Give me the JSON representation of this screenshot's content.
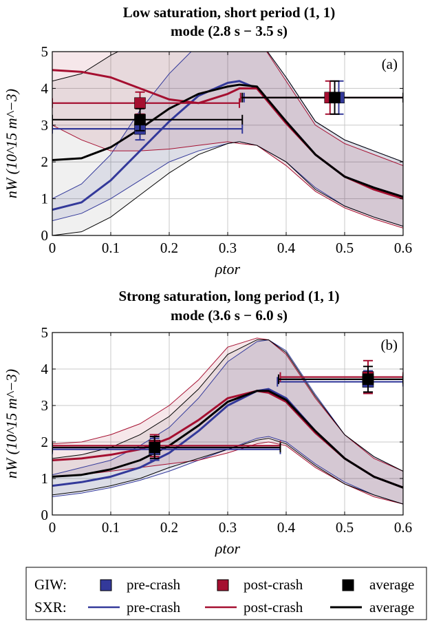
{
  "legend": {
    "giw_label": "GIW:",
    "sxr_label": "SXR:",
    "pre": "pre-crash",
    "post": "post-crash",
    "avg": "average"
  },
  "colors": {
    "pre": "#33399a",
    "post": "#a50f30",
    "avg": "#000000"
  },
  "chart_data": [
    {
      "type": "line",
      "title_line1": "Low saturation, short period (1, 1)",
      "title_line2": "mode (2.8 s − 3.5 s)",
      "panel_label": "(a)",
      "xlabel": "ρtor",
      "ylabel": "nW (10^15 m^−3)",
      "xlim": [
        0,
        0.6
      ],
      "ylim": [
        0,
        5
      ],
      "xticks": [
        0,
        0.1,
        0.2,
        0.3,
        0.4,
        0.5,
        0.6
      ],
      "yticks": [
        0,
        1,
        2,
        3,
        4,
        5
      ],
      "x": [
        0,
        0.05,
        0.1,
        0.15,
        0.2,
        0.25,
        0.3,
        0.32,
        0.35,
        0.4,
        0.45,
        0.5,
        0.55,
        0.6
      ],
      "sxr": [
        {
          "series": "pre",
          "mean": [
            0.7,
            0.9,
            1.5,
            2.3,
            3.1,
            3.8,
            4.15,
            4.2,
            4.0,
            3.1,
            2.2,
            1.6,
            1.3,
            1.05
          ],
          "lower": [
            0.4,
            0.6,
            1.0,
            1.5,
            2.0,
            2.3,
            2.5,
            2.55,
            2.45,
            2.0,
            1.3,
            0.8,
            0.5,
            0.25
          ],
          "upper": [
            1.0,
            1.4,
            2.2,
            3.4,
            4.4,
            5.2,
            5.6,
            5.6,
            5.4,
            4.3,
            3.1,
            2.6,
            2.3,
            2.0
          ]
        },
        {
          "series": "post",
          "mean": [
            4.5,
            4.45,
            4.3,
            4.0,
            3.7,
            3.6,
            3.85,
            4.0,
            4.0,
            3.05,
            2.2,
            1.6,
            1.25,
            1.0
          ],
          "lower": [
            3.0,
            2.6,
            2.3,
            2.3,
            2.35,
            2.45,
            2.55,
            2.5,
            2.45,
            1.9,
            1.2,
            0.75,
            0.45,
            0.2
          ],
          "upper": [
            5.0,
            5.4,
            5.6,
            5.6,
            5.6,
            5.6,
            5.6,
            5.6,
            5.4,
            4.2,
            3.0,
            2.5,
            2.2,
            1.9
          ]
        },
        {
          "series": "avg",
          "mean": [
            2.05,
            2.1,
            2.4,
            2.9,
            3.45,
            3.85,
            4.05,
            4.1,
            4.05,
            3.1,
            2.2,
            1.6,
            1.3,
            1.05
          ],
          "lower": [
            0.0,
            0.1,
            0.5,
            1.1,
            1.7,
            2.2,
            2.5,
            2.55,
            2.45,
            2.0,
            1.25,
            0.8,
            0.5,
            0.25
          ],
          "upper": [
            4.2,
            4.4,
            4.9,
            5.3,
            5.6,
            5.6,
            5.6,
            5.6,
            5.4,
            4.3,
            3.1,
            2.6,
            2.3,
            2.0
          ]
        }
      ],
      "giw": [
        {
          "series": "pre",
          "x": 0.15,
          "y": 2.9,
          "yerr": 0.3,
          "xmin": 0.0,
          "xmax": 0.325
        },
        {
          "series": "post",
          "x": 0.15,
          "y": 3.6,
          "yerr": 0.3,
          "xmin": 0.0,
          "xmax": 0.32
        },
        {
          "series": "avg",
          "x": 0.15,
          "y": 3.15,
          "yerr": 0.3,
          "xmin": 0.0,
          "xmax": 0.325
        },
        {
          "series": "pre",
          "x": 0.49,
          "y": 3.75,
          "yerr": 0.45,
          "xmin": 0.328,
          "xmax": 0.6
        },
        {
          "series": "post",
          "x": 0.475,
          "y": 3.75,
          "yerr": 0.45,
          "xmin": 0.322,
          "xmax": 0.6
        },
        {
          "series": "avg",
          "x": 0.483,
          "y": 3.75,
          "yerr": 0.45,
          "xmin": 0.325,
          "xmax": 0.6
        }
      ]
    },
    {
      "type": "line",
      "title_line1": "Strong saturation, long period (1, 1)",
      "title_line2": "mode (3.6 s − 6.0 s)",
      "panel_label": "(b)",
      "xlabel": "ρtor",
      "ylabel": "nW (10^15 m^−3)",
      "xlim": [
        0,
        0.6
      ],
      "ylim": [
        0,
        5
      ],
      "xticks": [
        0,
        0.1,
        0.2,
        0.3,
        0.4,
        0.5,
        0.6
      ],
      "yticks": [
        0,
        1,
        2,
        3,
        4,
        5
      ],
      "x": [
        0,
        0.05,
        0.1,
        0.15,
        0.2,
        0.25,
        0.3,
        0.35,
        0.37,
        0.4,
        0.45,
        0.5,
        0.55,
        0.6
      ],
      "sxr": [
        {
          "series": "pre",
          "mean": [
            0.8,
            0.9,
            1.05,
            1.3,
            1.7,
            2.3,
            3.0,
            3.4,
            3.45,
            3.2,
            2.3,
            1.55,
            1.05,
            0.75
          ],
          "lower": [
            0.5,
            0.6,
            0.75,
            0.95,
            1.2,
            1.5,
            1.8,
            2.1,
            2.15,
            2.0,
            1.4,
            0.9,
            0.55,
            0.3
          ],
          "upper": [
            1.1,
            1.3,
            1.5,
            1.9,
            2.4,
            3.2,
            4.2,
            4.75,
            4.8,
            4.5,
            3.3,
            2.2,
            1.6,
            1.2
          ]
        },
        {
          "series": "post",
          "mean": [
            1.5,
            1.55,
            1.65,
            1.8,
            2.1,
            2.6,
            3.2,
            3.4,
            3.35,
            3.1,
            2.25,
            1.55,
            1.05,
            0.75
          ],
          "lower": [
            1.05,
            1.1,
            1.2,
            1.3,
            1.4,
            1.5,
            1.7,
            1.95,
            2.0,
            1.9,
            1.3,
            0.85,
            0.5,
            0.3
          ],
          "upper": [
            1.95,
            2.0,
            2.2,
            2.5,
            3.0,
            3.7,
            4.6,
            4.85,
            4.8,
            4.4,
            3.2,
            2.2,
            1.55,
            1.2
          ]
        },
        {
          "series": "avg",
          "mean": [
            1.05,
            1.1,
            1.25,
            1.5,
            1.9,
            2.45,
            3.1,
            3.4,
            3.4,
            3.15,
            2.3,
            1.55,
            1.05,
            0.75
          ],
          "lower": [
            0.55,
            0.65,
            0.8,
            1.0,
            1.3,
            1.55,
            1.8,
            2.05,
            2.1,
            1.95,
            1.35,
            0.85,
            0.55,
            0.3
          ],
          "upper": [
            1.55,
            1.65,
            1.85,
            2.2,
            2.7,
            3.45,
            4.4,
            4.8,
            4.8,
            4.45,
            3.25,
            2.2,
            1.6,
            1.2
          ]
        }
      ],
      "giw": [
        {
          "series": "pre",
          "x": 0.175,
          "y": 1.8,
          "yerr": 0.3,
          "xmin": 0.0,
          "xmax": 0.39
        },
        {
          "series": "post",
          "x": 0.175,
          "y": 1.9,
          "yerr": 0.3,
          "xmin": 0.0,
          "xmax": 0.39
        },
        {
          "series": "avg",
          "x": 0.175,
          "y": 1.85,
          "yerr": 0.3,
          "xmin": 0.0,
          "xmax": 0.39
        },
        {
          "series": "pre",
          "x": 0.54,
          "y": 3.65,
          "yerr": 0.3,
          "xmin": 0.385,
          "xmax": 0.6
        },
        {
          "series": "post",
          "x": 0.54,
          "y": 3.78,
          "yerr": 0.45,
          "xmin": 0.39,
          "xmax": 0.6
        },
        {
          "series": "avg",
          "x": 0.54,
          "y": 3.72,
          "yerr": 0.35,
          "xmin": 0.387,
          "xmax": 0.6
        }
      ]
    }
  ]
}
